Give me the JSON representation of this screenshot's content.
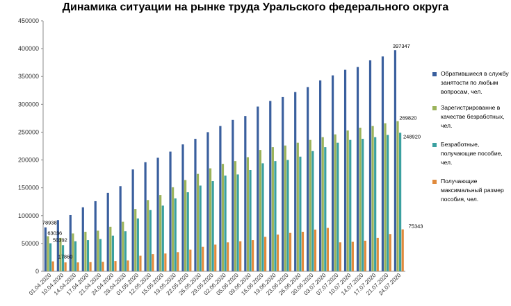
{
  "chart_data": {
    "type": "bar",
    "title": "Динамика ситуации  на рынке труда Уральского федерального округа",
    "xlabel": "",
    "ylabel": "",
    "ylim": [
      0,
      450000
    ],
    "yticks": [
      "0",
      "50000",
      "100000",
      "150000",
      "200000",
      "250000",
      "300000",
      "350000",
      "400000",
      "450000"
    ],
    "grid": false,
    "legend_position": "right",
    "categories": [
      "01.04.2020",
      "10.04.2020",
      "14.04.2020",
      "17.04.2020",
      "21.04.2020",
      "24.04.2020",
      "28.04.2020",
      "01.05.2020",
      "12.05.2020",
      "15.05.2020",
      "19.05.2020",
      "22.05.2020",
      "26.05.2020",
      "29.05.2020",
      "02.06.2020",
      "05.06.2020",
      "09.06.2020",
      "16.06.2020",
      "19.06.2020",
      "23.06.2020",
      "26.06.2020",
      "30.06.2020",
      "03.07.2020",
      "07.07.2020",
      "10.07.2020",
      "14.07.2020",
      "17.07.2020",
      "21.07.2020",
      "24.07.2020"
    ],
    "series": [
      {
        "name": "Обратившиеся в службу занятости по любым вопросам, чел.",
        "color": "#3a5f9e",
        "values": [
          78938,
          92000,
          101000,
          115000,
          126000,
          141000,
          153000,
          183000,
          196000,
          204000,
          215000,
          228000,
          238000,
          250000,
          261000,
          272000,
          279000,
          296000,
          306000,
          313000,
          322000,
          331000,
          343000,
          352000,
          362000,
          367000,
          379000,
          386000,
          397347
        ]
      },
      {
        "name": "Зарегистрированне в качестве безработных, чел.",
        "color": "#9bb35a",
        "values": [
          63036,
          60000,
          68000,
          71000,
          73000,
          80000,
          89000,
          112000,
          128000,
          137000,
          151000,
          164000,
          175000,
          185000,
          193000,
          198000,
          205000,
          218000,
          223000,
          226000,
          231000,
          236000,
          241000,
          246000,
          253000,
          258000,
          261000,
          266000,
          269820
        ]
      },
      {
        "name": "Безработные, получающие пособие, чел.",
        "color": "#3aa0a0",
        "values": [
          50392,
          47000,
          54000,
          56000,
          58000,
          64000,
          72000,
          95000,
          110000,
          118000,
          131000,
          142000,
          154000,
          162000,
          172000,
          174000,
          182000,
          194000,
          198000,
          200000,
          206000,
          216000,
          223000,
          231000,
          236000,
          238000,
          241000,
          245000,
          248920
        ]
      },
      {
        "name": "Получающие максимальный размер пособия, чел.",
        "color": "#e08a3c",
        "values": [
          17860,
          16000,
          16000,
          16500,
          17000,
          18500,
          19500,
          28000,
          31000,
          32000,
          34500,
          39000,
          44000,
          48000,
          52000,
          54000,
          56000,
          62000,
          66000,
          69000,
          71000,
          75000,
          78000,
          52000,
          53000,
          55000,
          60000,
          67000,
          75343
        ]
      }
    ],
    "data_labels": [
      {
        "series": 0,
        "index": 0,
        "text": "78938"
      },
      {
        "series": 1,
        "index": 0,
        "text": "63036"
      },
      {
        "series": 2,
        "index": 0,
        "text": "50392"
      },
      {
        "series": 3,
        "index": 0,
        "text": "17860"
      },
      {
        "series": 0,
        "index": 28,
        "text": "397347"
      },
      {
        "series": 1,
        "index": 28,
        "text": "269820"
      },
      {
        "series": 2,
        "index": 28,
        "text": "248920"
      },
      {
        "series": 3,
        "index": 28,
        "text": "75343"
      }
    ]
  }
}
